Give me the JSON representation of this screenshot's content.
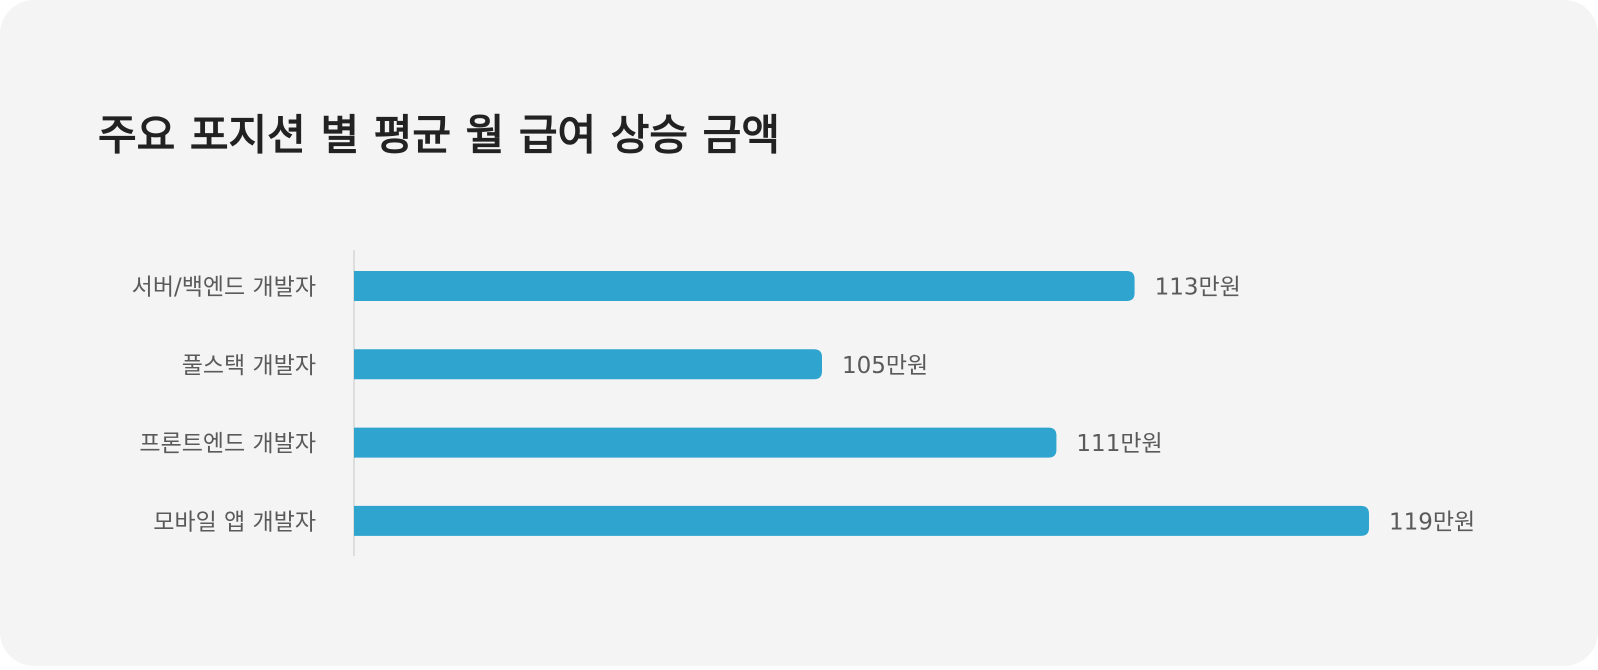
{
  "chart_data": {
    "type": "bar",
    "orientation": "horizontal",
    "title": "주요 포지션 별 평균 월 급여 상승 금액",
    "categories": [
      "서버/백엔드 개발자",
      "풀스택 개발자",
      "프론트엔드 개발자",
      "모바일 앱 개발자"
    ],
    "values": [
      113,
      105,
      111,
      119
    ],
    "value_labels": [
      "113만원",
      "105만원",
      "111만원",
      "119만원"
    ],
    "color": "#2ea4cf"
  }
}
